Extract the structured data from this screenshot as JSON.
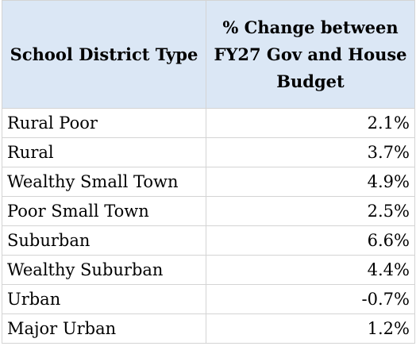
{
  "table": {
    "headers": {
      "district_type": "School District Type",
      "change": "% Change between FY27 Gov and House Budget"
    },
    "rows": [
      {
        "type": "Rural Poor",
        "change": "2.1%"
      },
      {
        "type": "Rural",
        "change": "3.7%"
      },
      {
        "type": "Wealthy Small Town",
        "change": "4.9%"
      },
      {
        "type": "Poor Small Town",
        "change": "2.5%"
      },
      {
        "type": "Suburban",
        "change": "6.6%"
      },
      {
        "type": "Wealthy Suburban",
        "change": "4.4%"
      },
      {
        "type": "Urban",
        "change": "-0.7%"
      },
      {
        "type": "Major Urban",
        "change": "1.2%"
      }
    ]
  },
  "colors": {
    "header_background": "#dbe7f5",
    "border": "#d4d4d4"
  }
}
